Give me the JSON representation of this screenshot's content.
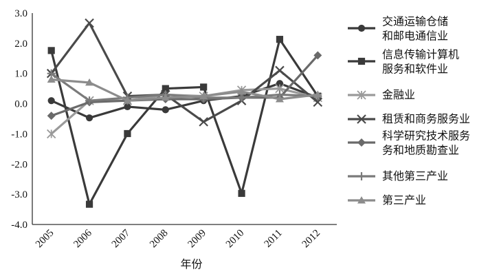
{
  "chart_data": {
    "type": "line",
    "title": "",
    "xlabel": "年份",
    "ylabel": "",
    "categories": [
      "2005",
      "2006",
      "2007",
      "2008",
      "2009",
      "2010",
      "2011",
      "2012"
    ],
    "ylim": [
      -4.0,
      3.0
    ],
    "yticks": [
      "3.0",
      "2.0",
      "1.0",
      "0.0",
      "-1.0",
      "-2.0",
      "-3.0",
      "-4.0"
    ],
    "legend_position": "right",
    "series": [
      {
        "name": "交通运输仓储和邮电通信业",
        "name_lines": [
          "交通运输仓储",
          "和邮电通信业"
        ],
        "marker": "circle",
        "color": "#3a3a3a",
        "values": [
          0.1,
          -0.47,
          -0.1,
          -0.2,
          0.1,
          0.25,
          0.67,
          0.2
        ]
      },
      {
        "name": "信息传输计算机服务和软件业",
        "name_lines": [
          "信息传输计算机",
          "服务和软件业"
        ],
        "marker": "square",
        "color": "#3a3a3a",
        "values": [
          1.76,
          -3.33,
          -0.99,
          0.5,
          0.55,
          -2.97,
          2.13,
          0.25
        ]
      },
      {
        "name": "金融业",
        "name_lines": [
          "金融业"
        ],
        "marker": "asterisk",
        "color": "#9a9a9a",
        "values": [
          -1.0,
          0.1,
          0.1,
          0.3,
          0.25,
          0.45,
          0.5,
          0.2
        ]
      },
      {
        "name": "租赁和商务服务业",
        "name_lines": [
          "租赁和商务服务业"
        ],
        "marker": "x",
        "color": "#4a4a4a",
        "values": [
          1.0,
          2.67,
          0.25,
          0.3,
          -0.6,
          0.1,
          1.1,
          0.05
        ]
      },
      {
        "name": "科学研究技术服务和地质勘查业",
        "name_lines": [
          "科学研究技术服务",
          "务和地质勘查业"
        ],
        "marker": "diamond",
        "color": "#6a6a6a",
        "values": [
          -0.4,
          0.05,
          0.1,
          0.15,
          0.15,
          0.2,
          0.2,
          1.6
        ]
      },
      {
        "name": "其他第三产业",
        "name_lines": [
          "其他第三产业"
        ],
        "marker": "plus",
        "color": "#7a7a7a",
        "values": [
          1.0,
          0.1,
          0.2,
          0.3,
          0.2,
          0.2,
          0.3,
          0.25
        ]
      },
      {
        "name": "第三产业",
        "name_lines": [
          "第三产业"
        ],
        "marker": "triangle",
        "color": "#8c8c8c",
        "values": [
          0.8,
          0.7,
          0.1,
          0.2,
          0.25,
          0.4,
          0.15,
          0.3
        ]
      }
    ]
  }
}
